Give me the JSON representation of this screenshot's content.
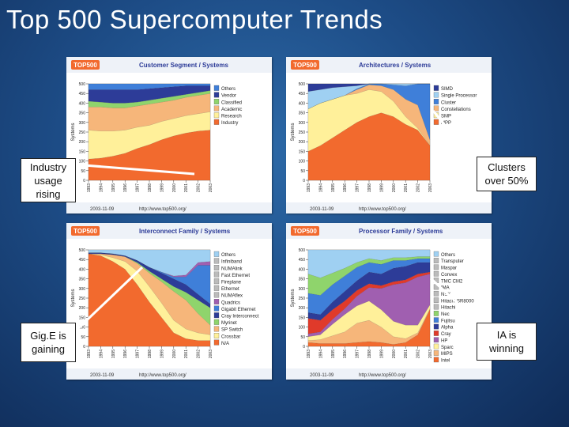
{
  "slide": {
    "title": "Top 500 Supercomputer Trends"
  },
  "colors": {
    "background": "#1d4c86",
    "orange": "#f26a2e",
    "yellow": "#fff09a",
    "salmon": "#f6b67a",
    "blue": "#3f7fd9",
    "lightblue": "#9fd0f2",
    "green": "#8fd46c",
    "navy": "#2d3c98",
    "purple": "#a05fb0",
    "red": "#e03a2a"
  },
  "callouts": [
    {
      "text": "Industry usage rising"
    },
    {
      "text": "Clusters over 50%"
    },
    {
      "text": "Gig.E is gaining"
    },
    {
      "text": "IA is winning"
    }
  ],
  "chart_data": [
    {
      "type": "area",
      "title": "Customer Segment / Systems",
      "logo": "TOP500",
      "ylabel": "Systems",
      "ylim": [
        0,
        500
      ],
      "y_ticks": [
        "0",
        "50",
        "100",
        "150",
        "200",
        "250",
        "300",
        "350",
        "400",
        "450",
        "500"
      ],
      "x_ticks": [
        "1993",
        "1994",
        "1995",
        "1996",
        "1997",
        "1998",
        "1999",
        "2000",
        "2001",
        "2002",
        "2003"
      ],
      "x": [
        1993,
        1994,
        1995,
        1996,
        1997,
        1998,
        1999,
        2000,
        2001,
        2002,
        2003
      ],
      "footer_left": "2003-11-09",
      "footer_right": "http://www.top500.org/",
      "legend": [
        "Others",
        "Vendor",
        "Classified",
        "Academic",
        "Research",
        "Industry"
      ],
      "series": [
        {
          "name": "Industry",
          "color": "#f26a2e",
          "values": [
            110,
            115,
            125,
            140,
            165,
            185,
            210,
            230,
            245,
            255,
            260
          ]
        },
        {
          "name": "Research",
          "color": "#fff09a",
          "values": [
            150,
            140,
            130,
            120,
            110,
            100,
            95,
            90,
            90,
            90,
            95
          ]
        },
        {
          "name": "Academic",
          "color": "#f6b67a",
          "values": [
            120,
            125,
            120,
            115,
            110,
            110,
            100,
            95,
            95,
            95,
            95
          ]
        },
        {
          "name": "Classified",
          "color": "#8fd46c",
          "values": [
            30,
            25,
            25,
            25,
            20,
            20,
            20,
            20,
            15,
            15,
            15
          ]
        },
        {
          "name": "Vendor",
          "color": "#2d3c98",
          "values": [
            60,
            65,
            70,
            70,
            65,
            60,
            55,
            50,
            45,
            35,
            25
          ]
        },
        {
          "name": "Others",
          "color": "#3f7fd9",
          "values": [
            30,
            30,
            30,
            30,
            30,
            25,
            20,
            15,
            10,
            10,
            10
          ]
        }
      ]
    },
    {
      "type": "area",
      "title": "Architectures / Systems",
      "logo": "TOP500",
      "ylabel": "Systems",
      "ylim": [
        0,
        500
      ],
      "y_ticks": [
        "0",
        "50",
        "100",
        "150",
        "200",
        "250",
        "300",
        "350",
        "400",
        "450",
        "500"
      ],
      "x_ticks": [
        "1993",
        "1994",
        "1995",
        "1996",
        "1997",
        "1998",
        "1999",
        "2000",
        "2001",
        "2002",
        "2003"
      ],
      "x": [
        1993,
        1994,
        1995,
        1996,
        1997,
        1998,
        1999,
        2000,
        2001,
        2002,
        2003
      ],
      "footer_left": "2003-11-09",
      "footer_right": "http://www.top500.org/",
      "legend": [
        "SIMD",
        "Single Processor",
        "Cluster",
        "Constellations",
        "SMP",
        "MPP"
      ],
      "series": [
        {
          "name": "MPP",
          "color": "#f26a2e",
          "values": [
            150,
            180,
            220,
            260,
            300,
            330,
            350,
            330,
            290,
            260,
            180
          ]
        },
        {
          "name": "SMP",
          "color": "#fff09a",
          "values": [
            220,
            220,
            200,
            180,
            150,
            140,
            110,
            80,
            40,
            10,
            0
          ]
        },
        {
          "name": "Constellations",
          "color": "#f6b67a",
          "values": [
            0,
            0,
            0,
            0,
            20,
            25,
            30,
            60,
            90,
            120,
            30
          ]
        },
        {
          "name": "Cluster",
          "color": "#3f7fd9",
          "values": [
            0,
            0,
            0,
            0,
            5,
            5,
            10,
            25,
            70,
            110,
            290
          ]
        },
        {
          "name": "Single Processor",
          "color": "#9fd0f2",
          "values": [
            90,
            70,
            60,
            45,
            15,
            0,
            0,
            5,
            10,
            0,
            0
          ]
        },
        {
          "name": "SIMD",
          "color": "#2d3c98",
          "values": [
            40,
            30,
            20,
            15,
            10,
            0,
            0,
            0,
            0,
            0,
            0
          ]
        }
      ]
    },
    {
      "type": "area",
      "title": "Interconnect Family / Systems",
      "logo": "TOP500",
      "ylabel": "Systems",
      "ylim": [
        0,
        500
      ],
      "y_ticks": [
        "0",
        "50",
        "100",
        "150",
        "200",
        "250",
        "300",
        "350",
        "400",
        "450",
        "500"
      ],
      "x_ticks": [
        "1993",
        "1994",
        "1995",
        "1996",
        "1997",
        "1998",
        "1999",
        "2000",
        "2001",
        "2002",
        "2003"
      ],
      "x": [
        1993,
        1994,
        1995,
        1996,
        1997,
        1998,
        1999,
        2000,
        2001,
        2002,
        2003
      ],
      "footer_left": "2003-11-09",
      "footer_right": "http://www.top500.org/",
      "legend": [
        "Others",
        "Infiniband",
        "NUMAlink",
        "Fast Ethernet",
        "Fireplane",
        "Ethernet",
        "NUMAflex",
        "Quadrics",
        "Gigabit Ethernet",
        "Cray Interconnect",
        "Myrinet",
        "SP Switch",
        "Crossbar",
        "N/A"
      ],
      "series": [
        {
          "name": "N/A",
          "color": "#f26a2e",
          "values": [
            480,
            470,
            440,
            400,
            320,
            230,
            150,
            70,
            40,
            30,
            30
          ]
        },
        {
          "name": "Crossbar",
          "color": "#fff09a",
          "values": [
            0,
            5,
            20,
            40,
            70,
            80,
            75,
            65,
            50,
            40,
            30
          ]
        },
        {
          "name": "SP Switch",
          "color": "#f6b67a",
          "values": [
            0,
            5,
            15,
            25,
            40,
            70,
            110,
            150,
            150,
            100,
            50
          ]
        },
        {
          "name": "Myrinet",
          "color": "#8fd46c",
          "values": [
            0,
            0,
            0,
            0,
            5,
            10,
            15,
            25,
            40,
            70,
            90
          ]
        },
        {
          "name": "Cray Interconnect",
          "color": "#2d3c98",
          "values": [
            5,
            5,
            5,
            5,
            10,
            20,
            30,
            40,
            40,
            30,
            20
          ]
        },
        {
          "name": "Gigabit Ethernet",
          "color": "#3f7fd9",
          "values": [
            0,
            0,
            0,
            0,
            0,
            0,
            5,
            10,
            40,
            150,
            200
          ]
        },
        {
          "name": "Quadrics",
          "color": "#a05fb0",
          "values": [
            0,
            0,
            0,
            0,
            0,
            0,
            0,
            5,
            10,
            15,
            20
          ]
        },
        {
          "name": "Others",
          "color": "#9fd0f2",
          "values": [
            15,
            15,
            20,
            30,
            55,
            90,
            115,
            135,
            130,
            65,
            60
          ]
        }
      ]
    },
    {
      "type": "area",
      "title": "Processor Family / Systems",
      "logo": "TOP500",
      "ylabel": "Systems",
      "ylim": [
        0,
        500
      ],
      "y_ticks": [
        "0",
        "50",
        "100",
        "150",
        "200",
        "250",
        "300",
        "350",
        "400",
        "450",
        "500"
      ],
      "x_ticks": [
        "1993",
        "1994",
        "1995",
        "1996",
        "1997",
        "1998",
        "1999",
        "2000",
        "2001",
        "2002",
        "2003"
      ],
      "x": [
        1993,
        1994,
        1995,
        1996,
        1997,
        1998,
        1999,
        2000,
        2001,
        2002,
        2003
      ],
      "footer_left": "2003-11-09",
      "footer_right": "http://www.top500.org/",
      "legend": [
        "Others",
        "Transputer",
        "Maspar",
        "Convex",
        "TMC CM2",
        "IMA",
        "NSK",
        "Hitachi SR8000",
        "Hitachi",
        "Nec",
        "Fujitsu",
        "Alpha",
        "Cray",
        "HP",
        "Sparc",
        "MIPS",
        "Intel"
      ],
      "series": [
        {
          "name": "Intel",
          "color": "#f26a2e",
          "values": [
            20,
            15,
            15,
            15,
            20,
            25,
            20,
            10,
            20,
            60,
            190
          ]
        },
        {
          "name": "MIPS",
          "color": "#f6b67a",
          "values": [
            10,
            20,
            40,
            60,
            100,
            110,
            80,
            40,
            20,
            10,
            5
          ]
        },
        {
          "name": "Sparc",
          "color": "#fff09a",
          "values": [
            20,
            25,
            60,
            90,
            90,
            100,
            90,
            80,
            70,
            40,
            20
          ]
        },
        {
          "name": "HP",
          "color": "#a05fb0",
          "values": [
            15,
            15,
            25,
            30,
            50,
            70,
            110,
            190,
            220,
            250,
            160
          ]
        },
        {
          "name": "Cray",
          "color": "#e03a2a",
          "values": [
            80,
            60,
            50,
            40,
            30,
            20,
            15,
            15,
            15,
            15,
            10
          ]
        },
        {
          "name": "Alpha",
          "color": "#2d3c98",
          "values": [
            30,
            30,
            40,
            50,
            50,
            60,
            60,
            70,
            70,
            60,
            50
          ]
        },
        {
          "name": "Fujitsu",
          "color": "#3f7fd9",
          "values": [
            100,
            100,
            90,
            80,
            70,
            50,
            50,
            40,
            30,
            20,
            20
          ]
        },
        {
          "name": "Nec",
          "color": "#8fd46c",
          "values": [
            100,
            90,
            60,
            40,
            25,
            20,
            20,
            15,
            15,
            10,
            10
          ]
        },
        {
          "name": "Others",
          "color": "#9fd0f2",
          "values": [
            125,
            145,
            120,
            95,
            65,
            45,
            55,
            40,
            40,
            35,
            35
          ]
        }
      ]
    }
  ]
}
